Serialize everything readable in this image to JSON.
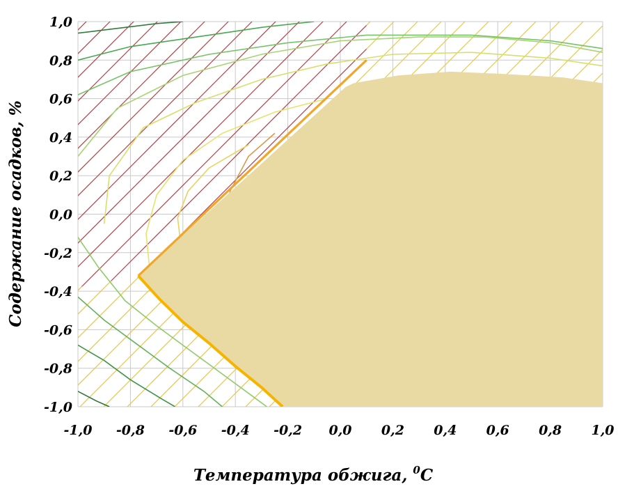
{
  "chart_data": {
    "type": "contour",
    "xlabel": "Температура обжига, ",
    "xlabel_superscript": "0",
    "xlabel_unit": "C",
    "ylabel": "Содержание осадков, %",
    "xlim": [
      -1.0,
      1.0
    ],
    "ylim": [
      -1.0,
      1.0
    ],
    "x_ticks": [
      "-1,0",
      "-0,8",
      "-0,6",
      "-0,4",
      "-0,2",
      "0,0",
      "0,2",
      "0,4",
      "0,6",
      "0,8",
      "1,0"
    ],
    "y_ticks": [
      "1,0",
      "0,8",
      "0,6",
      "0,4",
      "0,2",
      "0,0",
      "-0,2",
      "-0,4",
      "-0,6",
      "-0,8",
      "-1,0"
    ],
    "grid": true,
    "feasible_region": {
      "color": "#e9d9a2",
      "boundary_color": "#f5b400",
      "vertices": [
        [
          -0.77,
          -0.32
        ],
        [
          -0.69,
          -0.44
        ],
        [
          -0.6,
          -0.56
        ],
        [
          -0.5,
          -0.67
        ],
        [
          -0.4,
          -0.79
        ],
        [
          -0.3,
          -0.9
        ],
        [
          -0.22,
          -1.0
        ],
        [
          1.0,
          -1.0
        ],
        [
          1.0,
          0.68
        ],
        [
          0.85,
          0.71
        ],
        [
          0.6,
          0.73
        ],
        [
          0.42,
          0.74
        ],
        [
          0.22,
          0.72
        ],
        [
          0.05,
          0.68
        ],
        [
          0.02,
          0.66
        ]
      ],
      "boundary_line": [
        [
          -0.77,
          -0.32
        ],
        [
          -0.69,
          -0.44
        ],
        [
          -0.6,
          -0.56
        ],
        [
          -0.5,
          -0.67
        ],
        [
          -0.4,
          -0.79
        ],
        [
          -0.3,
          -0.9
        ],
        [
          -0.22,
          -1.0
        ]
      ],
      "boundary_line_2": [
        [
          -0.77,
          -0.32
        ],
        [
          0.1,
          0.8
        ]
      ]
    },
    "hatch_regions": [
      {
        "color": "#a8484e",
        "region": [
          [
            -1.0,
            -0.38
          ],
          [
            -1.0,
            1.0
          ],
          [
            0.1,
            1.0
          ],
          [
            0.1,
            0.8
          ],
          [
            -0.77,
            -0.32
          ]
        ]
      },
      {
        "color": "#e3c95a",
        "region": [
          [
            0.1,
            0.8
          ],
          [
            0.1,
            1.0
          ],
          [
            1.0,
            1.0
          ],
          [
            1.0,
            0.68
          ],
          [
            0.6,
            0.73
          ],
          [
            0.22,
            0.72
          ],
          [
            0.05,
            0.68
          ],
          [
            0.02,
            0.66
          ]
        ]
      },
      {
        "color": "#e0c65a",
        "region": [
          [
            -1.0,
            -0.38
          ],
          [
            -0.77,
            -0.32
          ],
          [
            -0.69,
            -0.44
          ],
          [
            -0.5,
            -0.67
          ],
          [
            -0.3,
            -0.9
          ],
          [
            -0.22,
            -1.0
          ],
          [
            -1.0,
            -1.0
          ]
        ]
      }
    ],
    "contours": [
      {
        "color": "#2f7d3a",
        "points": [
          [
            -1.0,
            0.94
          ],
          [
            -0.7,
            0.99
          ],
          [
            -0.6,
            1.0
          ]
        ]
      },
      {
        "color": "#49a84f",
        "points": [
          [
            -1.0,
            0.8
          ],
          [
            -0.8,
            0.87
          ],
          [
            -0.5,
            0.93
          ],
          [
            -0.3,
            0.97
          ],
          [
            -0.1,
            1.0
          ]
        ]
      },
      {
        "color": "#74c466",
        "points": [
          [
            -1.0,
            0.62
          ],
          [
            -0.8,
            0.74
          ],
          [
            -0.5,
            0.83
          ],
          [
            -0.2,
            0.89
          ],
          [
            0.1,
            0.93
          ],
          [
            0.5,
            0.93
          ],
          [
            0.8,
            0.9
          ],
          [
            1.0,
            0.86
          ]
        ]
      },
      {
        "color": "#a6d470",
        "points": [
          [
            -1.0,
            0.3
          ],
          [
            -0.85,
            0.55
          ],
          [
            -0.6,
            0.72
          ],
          [
            -0.3,
            0.83
          ],
          [
            0.0,
            0.9
          ],
          [
            0.3,
            0.92
          ],
          [
            0.55,
            0.92
          ],
          [
            0.8,
            0.89
          ],
          [
            1.0,
            0.84
          ]
        ]
      },
      {
        "color": "#d5e06a",
        "points": [
          [
            -0.9,
            -0.05
          ],
          [
            -0.88,
            0.2
          ],
          [
            -0.75,
            0.45
          ],
          [
            -0.55,
            0.58
          ],
          [
            -0.3,
            0.7
          ],
          [
            -0.05,
            0.78
          ],
          [
            0.2,
            0.83
          ],
          [
            0.5,
            0.84
          ],
          [
            0.8,
            0.81
          ],
          [
            1.0,
            0.77
          ]
        ]
      },
      {
        "color": "#e6e36b",
        "points": [
          [
            -0.72,
            -0.38
          ],
          [
            -0.74,
            -0.1
          ],
          [
            -0.7,
            0.1
          ],
          [
            -0.6,
            0.28
          ],
          [
            -0.45,
            0.42
          ],
          [
            -0.25,
            0.53
          ],
          [
            -0.05,
            0.6
          ]
        ]
      },
      {
        "color": "#e8d35e",
        "points": [
          [
            -0.6,
            -0.25
          ],
          [
            -0.62,
            -0.02
          ],
          [
            -0.58,
            0.12
          ],
          [
            -0.5,
            0.24
          ],
          [
            -0.35,
            0.36
          ]
        ]
      },
      {
        "color": "#d69a4a",
        "points": [
          [
            -0.45,
            -0.08
          ],
          [
            -0.42,
            0.12
          ],
          [
            -0.35,
            0.3
          ],
          [
            -0.25,
            0.42
          ]
        ]
      },
      {
        "color": "#8fcb6a",
        "points": [
          [
            -1.0,
            -0.12
          ],
          [
            -0.92,
            -0.28
          ],
          [
            -0.82,
            -0.45
          ],
          [
            -0.7,
            -0.58
          ],
          [
            -0.58,
            -0.7
          ],
          [
            -0.45,
            -0.83
          ],
          [
            -0.33,
            -0.95
          ],
          [
            -0.28,
            -1.0
          ]
        ]
      },
      {
        "color": "#64b25a",
        "points": [
          [
            -1.0,
            -0.43
          ],
          [
            -0.9,
            -0.55
          ],
          [
            -0.78,
            -0.67
          ],
          [
            -0.65,
            -0.8
          ],
          [
            -0.52,
            -0.92
          ],
          [
            -0.45,
            -1.0
          ]
        ]
      },
      {
        "color": "#3f9448",
        "points": [
          [
            -1.0,
            -0.68
          ],
          [
            -0.9,
            -0.76
          ],
          [
            -0.8,
            -0.86
          ],
          [
            -0.68,
            -0.96
          ],
          [
            -0.63,
            -1.0
          ]
        ]
      },
      {
        "color": "#2b7336",
        "points": [
          [
            -1.0,
            -0.92
          ],
          [
            -0.93,
            -0.97
          ],
          [
            -0.88,
            -1.0
          ]
        ]
      }
    ]
  }
}
